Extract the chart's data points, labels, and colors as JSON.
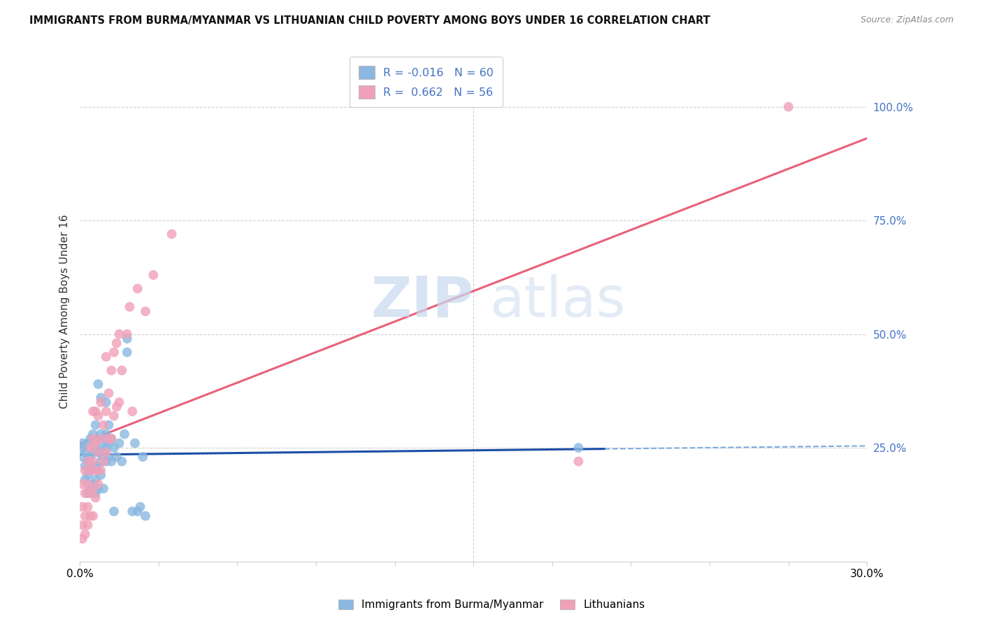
{
  "title": "IMMIGRANTS FROM BURMA/MYANMAR VS LITHUANIAN CHILD POVERTY AMONG BOYS UNDER 16 CORRELATION CHART",
  "source": "Source: ZipAtlas.com",
  "ylabel": "Child Poverty Among Boys Under 16",
  "watermark_zip": "ZIP",
  "watermark_atlas": "atlas",
  "blue_R": -0.016,
  "blue_N": 60,
  "pink_R": 0.662,
  "pink_N": 56,
  "x_min": 0.0,
  "x_max": 0.3,
  "y_min": 0.0,
  "y_max": 1.1,
  "blue_line_color": "#1c4ea6",
  "pink_line_color": "#e8607a",
  "blue_line_dashed_color": "#7aabdc",
  "grid_color": "#d0d0d0",
  "background_color": "#ffffff",
  "scatter_blue_color": "#8ab8e0",
  "scatter_pink_color": "#f0a0b8",
  "right_tick_color": "#4472c4",
  "blue_line_y_intercept": 0.27,
  "blue_line_slope": 0.0,
  "pink_line_y_intercept": 0.005,
  "pink_line_slope": 3.45,
  "blue_scatter_x": [
    0.001,
    0.001,
    0.002,
    0.002,
    0.002,
    0.003,
    0.003,
    0.003,
    0.003,
    0.004,
    0.004,
    0.004,
    0.004,
    0.005,
    0.005,
    0.005,
    0.005,
    0.006,
    0.006,
    0.006,
    0.006,
    0.006,
    0.007,
    0.007,
    0.007,
    0.007,
    0.007,
    0.008,
    0.008,
    0.008,
    0.008,
    0.008,
    0.009,
    0.009,
    0.009,
    0.01,
    0.01,
    0.01,
    0.01,
    0.011,
    0.011,
    0.011,
    0.012,
    0.012,
    0.013,
    0.013,
    0.014,
    0.015,
    0.016,
    0.017,
    0.018,
    0.018,
    0.02,
    0.021,
    0.022,
    0.023,
    0.024,
    0.025,
    0.19,
    0.001
  ],
  "blue_scatter_y": [
    0.23,
    0.25,
    0.18,
    0.21,
    0.24,
    0.15,
    0.19,
    0.22,
    0.26,
    0.16,
    0.2,
    0.23,
    0.27,
    0.17,
    0.21,
    0.24,
    0.28,
    0.15,
    0.18,
    0.21,
    0.25,
    0.3,
    0.16,
    0.2,
    0.24,
    0.27,
    0.39,
    0.19,
    0.22,
    0.25,
    0.28,
    0.36,
    0.16,
    0.23,
    0.27,
    0.22,
    0.25,
    0.28,
    0.35,
    0.23,
    0.26,
    0.3,
    0.22,
    0.27,
    0.11,
    0.25,
    0.23,
    0.26,
    0.22,
    0.28,
    0.46,
    0.49,
    0.11,
    0.26,
    0.11,
    0.12,
    0.23,
    0.1,
    0.25,
    0.26
  ],
  "pink_scatter_x": [
    0.001,
    0.001,
    0.001,
    0.001,
    0.002,
    0.002,
    0.002,
    0.002,
    0.003,
    0.003,
    0.003,
    0.003,
    0.004,
    0.004,
    0.004,
    0.004,
    0.005,
    0.005,
    0.005,
    0.005,
    0.005,
    0.006,
    0.006,
    0.006,
    0.006,
    0.007,
    0.007,
    0.007,
    0.008,
    0.008,
    0.008,
    0.009,
    0.009,
    0.01,
    0.01,
    0.01,
    0.011,
    0.011,
    0.012,
    0.012,
    0.013,
    0.013,
    0.014,
    0.014,
    0.015,
    0.015,
    0.016,
    0.018,
    0.019,
    0.02,
    0.022,
    0.025,
    0.028,
    0.035,
    0.19,
    0.27
  ],
  "pink_scatter_y": [
    0.05,
    0.08,
    0.12,
    0.17,
    0.06,
    0.1,
    0.15,
    0.2,
    0.08,
    0.12,
    0.17,
    0.22,
    0.1,
    0.15,
    0.2,
    0.25,
    0.1,
    0.16,
    0.22,
    0.27,
    0.33,
    0.14,
    0.2,
    0.26,
    0.33,
    0.17,
    0.24,
    0.32,
    0.2,
    0.27,
    0.35,
    0.22,
    0.3,
    0.24,
    0.33,
    0.45,
    0.27,
    0.37,
    0.27,
    0.42,
    0.32,
    0.46,
    0.34,
    0.48,
    0.35,
    0.5,
    0.42,
    0.5,
    0.56,
    0.33,
    0.6,
    0.55,
    0.63,
    0.72,
    0.22,
    1.0
  ]
}
